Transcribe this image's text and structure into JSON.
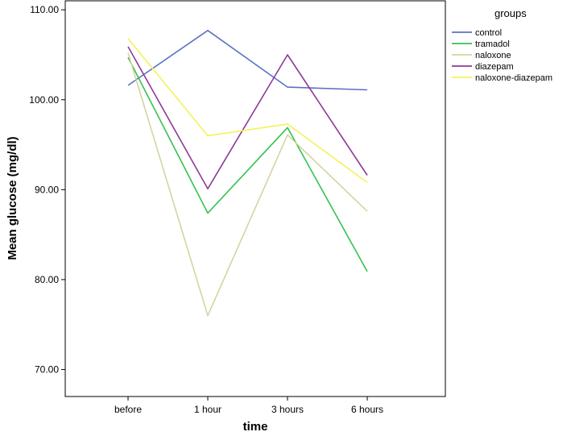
{
  "chart_data": {
    "type": "line",
    "title": "",
    "xlabel": "time",
    "ylabel": "Mean glucose (mg/dl)",
    "categories": [
      "before",
      "1 hour",
      "3 hours",
      "6 hours"
    ],
    "ylim": [
      67,
      111
    ],
    "yticks": [
      "70.00",
      "80.00",
      "90.00",
      "100.00",
      "110.00"
    ],
    "ytick_values": [
      70,
      80,
      90,
      100,
      110
    ],
    "grid": false,
    "legend": {
      "title": "groups",
      "placement": "top-right outside plot"
    },
    "series": [
      {
        "name": "control",
        "color": "#5b72c4",
        "values": [
          101.6,
          107.7,
          101.4,
          101.1
        ]
      },
      {
        "name": "tramadol",
        "color": "#34c152",
        "values": [
          104.7,
          87.4,
          96.9,
          80.9
        ]
      },
      {
        "name": "naloxone",
        "color": "#d5d4a0",
        "values": [
          105.2,
          76.0,
          96.1,
          87.6
        ]
      },
      {
        "name": "diazepam",
        "color": "#8d3a97",
        "values": [
          105.9,
          90.1,
          105.0,
          91.6
        ]
      },
      {
        "name": "naloxone-diazepam",
        "color": "#f4f25a",
        "values": [
          106.8,
          96.0,
          97.3,
          90.8
        ]
      }
    ]
  }
}
